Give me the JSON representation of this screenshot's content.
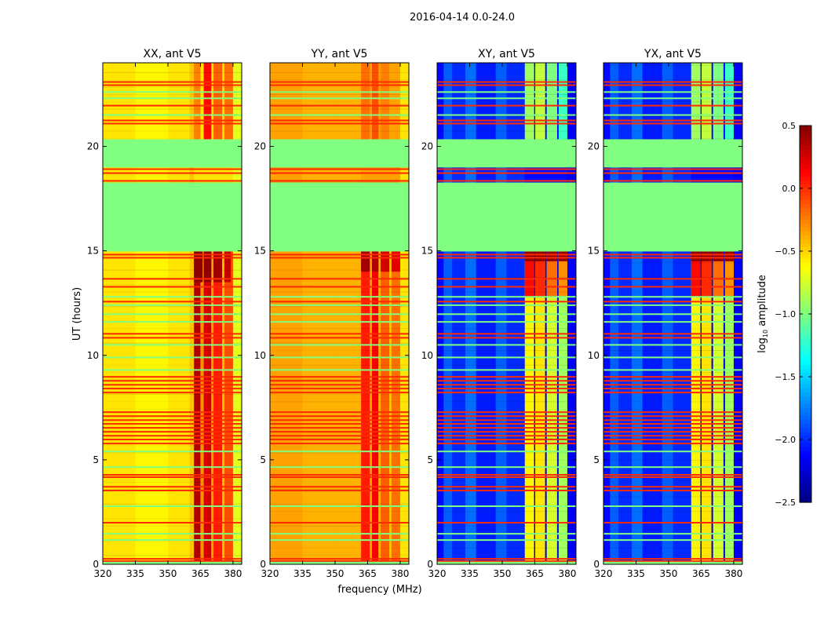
{
  "chart_data": {
    "type": "heatmap",
    "title": "2016-04-14 0.0-24.0",
    "xlabel": "frequency (MHz)",
    "ylabel": "UT (hours)",
    "xlim": [
      320,
      384
    ],
    "ylim": [
      0,
      24
    ],
    "xticks": [
      320,
      335,
      350,
      365,
      380
    ],
    "yticks": [
      0,
      5,
      10,
      15,
      20
    ],
    "colormap": "jet",
    "colorbar": {
      "label_prefix": "log",
      "label_sub": "10",
      "label_suffix": " amplitude",
      "range": [
        -2.5,
        0.5
      ],
      "ticks": [
        "0.5",
        "0.0",
        "−0.5",
        "−1.0",
        "−1.5",
        "−2.0",
        "−2.5"
      ],
      "tick_values": [
        0.5,
        0.0,
        -0.5,
        -1.0,
        -1.5,
        -2.0,
        -2.5
      ]
    },
    "flagged_value": -1.0,
    "flagged_ranges": [
      [
        14.97,
        18.27
      ],
      [
        18.99,
        20.34
      ],
      [
        0.0,
        0.12
      ]
    ],
    "rfi_lines": {
      "red": [
        23.08,
        22.93,
        21.95,
        21.24,
        21.09,
        18.91,
        18.72,
        18.35,
        14.82,
        14.67,
        13.66,
        13.28,
        12.57,
        11.03,
        10.84,
        8.97,
        8.78,
        8.59,
        8.41,
        8.22,
        7.28,
        7.09,
        6.9,
        6.72,
        6.53,
        6.34,
        6.15,
        5.97,
        5.78,
        4.28,
        4.17,
        3.71,
        3.53,
        1.99,
        0.26,
        0.15
      ],
      "red_value": 0.0,
      "green": [
        22.6,
        22.3,
        21.5,
        12.8,
        12.4,
        11.97,
        11.6,
        10.5,
        9.9,
        9.3,
        5.4,
        4.65,
        2.78,
        1.46,
        1.16
      ],
      "green_value": -1.0
    },
    "panels": [
      {
        "title": "XX, ant V5",
        "base": [
          [
            320,
            335,
            -0.55
          ],
          [
            335,
            350,
            -0.6
          ],
          [
            350,
            360,
            -0.55
          ],
          [
            360,
            362,
            -0.45
          ],
          [
            380,
            384,
            -0.7
          ]
        ],
        "bands": [
          [
            362,
            365,
            0,
            15,
            0.35
          ],
          [
            365,
            366.5,
            0,
            15,
            -0.3
          ],
          [
            366.5,
            370,
            0,
            15,
            0.25
          ],
          [
            370,
            371,
            0,
            15,
            -0.35
          ],
          [
            371,
            375,
            0,
            15,
            0.05
          ],
          [
            375,
            376,
            0,
            15,
            -0.45
          ],
          [
            376,
            380,
            0,
            15,
            -0.1
          ],
          [
            362,
            365,
            20.34,
            24,
            -0.25
          ],
          [
            366.5,
            370,
            20.34,
            24,
            0.1
          ],
          [
            371,
            375,
            20.34,
            24,
            -0.15
          ],
          [
            376,
            380,
            20.34,
            24,
            -0.2
          ],
          [
            362,
            366,
            13.5,
            14.97,
            0.45
          ],
          [
            366.5,
            370,
            13.5,
            14.97,
            0.45
          ],
          [
            371,
            375,
            13.5,
            14.97,
            0.4
          ],
          [
            376,
            379,
            13.5,
            14.97,
            0.3
          ]
        ]
      },
      {
        "title": "YY, ant V5",
        "base": [
          [
            320,
            335,
            -0.35
          ],
          [
            335,
            350,
            -0.4
          ],
          [
            350,
            362,
            -0.4
          ],
          [
            380,
            384,
            -0.55
          ]
        ],
        "bands": [
          [
            362,
            366,
            0,
            15,
            0.05
          ],
          [
            366,
            367,
            0,
            15,
            -0.35
          ],
          [
            367,
            370,
            0,
            15,
            0.15
          ],
          [
            370,
            371,
            0,
            15,
            -0.4
          ],
          [
            371,
            375,
            0,
            15,
            -0.15
          ],
          [
            375,
            376,
            0,
            15,
            -0.45
          ],
          [
            376,
            380,
            0,
            15,
            -0.2
          ],
          [
            362,
            366,
            20.34,
            24,
            -0.2
          ],
          [
            367,
            370,
            20.34,
            24,
            -0.1
          ],
          [
            371,
            375,
            20.34,
            24,
            -0.25
          ],
          [
            362,
            366,
            14.0,
            14.97,
            0.4
          ],
          [
            367,
            370,
            14.0,
            14.97,
            0.35
          ],
          [
            371,
            375,
            14.0,
            14.97,
            0.25
          ],
          [
            376,
            380,
            14.0,
            14.97,
            0.2
          ]
        ]
      },
      {
        "title": "XY, ant V5",
        "base": [
          [
            320,
            323,
            -2.1
          ],
          [
            323,
            327,
            -1.85
          ],
          [
            327,
            333,
            -2.0
          ],
          [
            333,
            338,
            -1.8
          ],
          [
            338,
            347,
            -2.05
          ],
          [
            347,
            352,
            -1.85
          ],
          [
            352,
            360.4,
            -2.0
          ],
          [
            380,
            384,
            -2.15
          ]
        ],
        "bands": [
          [
            360.4,
            364.7,
            0,
            15,
            -0.6
          ],
          [
            364.7,
            365.2,
            0,
            15,
            -2.2
          ],
          [
            365.2,
            369.8,
            0,
            15,
            -0.55
          ],
          [
            369.8,
            370.5,
            0,
            15,
            -2.2
          ],
          [
            370.5,
            375.3,
            0,
            15,
            -0.75
          ],
          [
            375.3,
            376,
            0,
            15,
            -2.2
          ],
          [
            376,
            380,
            0,
            15,
            -0.9
          ],
          [
            360.4,
            364.7,
            20.34,
            24,
            -0.9
          ],
          [
            365.2,
            369.8,
            20.34,
            24,
            -0.8
          ],
          [
            370.5,
            375.3,
            20.34,
            24,
            -1.0
          ],
          [
            376,
            380,
            20.34,
            24,
            -1.2
          ],
          [
            360.4,
            364.7,
            12.8,
            14.97,
            0.1
          ],
          [
            365.2,
            369.8,
            12.8,
            14.97,
            0.0
          ],
          [
            370.5,
            375.3,
            12.8,
            14.97,
            -0.2
          ],
          [
            376,
            380,
            12.8,
            14.97,
            -0.3
          ],
          [
            360.4,
            364.7,
            14.5,
            14.97,
            0.45
          ],
          [
            365.2,
            369.8,
            14.5,
            14.97,
            0.45
          ],
          [
            370.5,
            375.3,
            14.5,
            14.97,
            0.45
          ],
          [
            376,
            380,
            14.5,
            14.97,
            0.45
          ]
        ]
      },
      {
        "title": "YX, ant V5",
        "base": [
          [
            320,
            323,
            -2.1
          ],
          [
            323,
            327,
            -1.85
          ],
          [
            327,
            333,
            -2.0
          ],
          [
            333,
            338,
            -1.8
          ],
          [
            338,
            347,
            -2.05
          ],
          [
            347,
            352,
            -1.85
          ],
          [
            352,
            360.4,
            -2.0
          ],
          [
            380,
            384,
            -2.15
          ]
        ],
        "bands": [
          [
            360.4,
            364.7,
            0,
            15,
            -0.6
          ],
          [
            364.7,
            365.2,
            0,
            15,
            -2.2
          ],
          [
            365.2,
            369.8,
            0,
            15,
            -0.55
          ],
          [
            369.8,
            370.5,
            0,
            15,
            -2.2
          ],
          [
            370.5,
            375.3,
            0,
            15,
            -0.75
          ],
          [
            375.3,
            376,
            0,
            15,
            -2.2
          ],
          [
            376,
            380,
            0,
            15,
            -0.9
          ],
          [
            360.4,
            364.7,
            20.34,
            24,
            -0.9
          ],
          [
            365.2,
            369.8,
            20.34,
            24,
            -0.8
          ],
          [
            370.5,
            375.3,
            20.34,
            24,
            -1.0
          ],
          [
            376,
            380,
            20.34,
            24,
            -1.2
          ],
          [
            360.4,
            364.7,
            12.8,
            14.97,
            0.1
          ],
          [
            365.2,
            369.8,
            12.8,
            14.97,
            0.0
          ],
          [
            370.5,
            375.3,
            12.8,
            14.97,
            -0.2
          ],
          [
            376,
            380,
            12.8,
            14.97,
            -0.3
          ],
          [
            360.4,
            364.7,
            14.5,
            14.97,
            0.45
          ],
          [
            365.2,
            369.8,
            14.5,
            14.97,
            0.45
          ],
          [
            370.5,
            375.3,
            14.5,
            14.97,
            0.45
          ],
          [
            376,
            380,
            14.5,
            14.97,
            0.45
          ]
        ]
      }
    ]
  }
}
